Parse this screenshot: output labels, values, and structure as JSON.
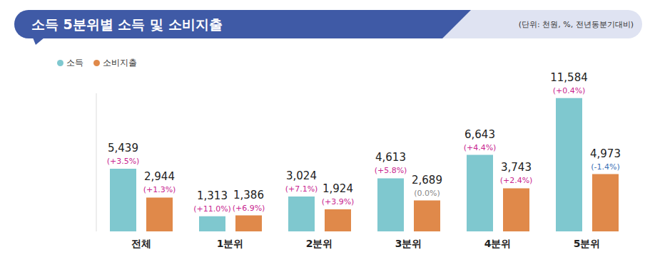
{
  "chart_data": {
    "type": "bar",
    "title": "소득 5분위별 소득 및 소비지출",
    "subtitle": "(단위: 천원, %, 전년동분기대비)",
    "categories": [
      "전체",
      "1분위",
      "2분위",
      "3분위",
      "4분위",
      "5분위"
    ],
    "series": [
      {
        "name": "소득",
        "color": "#7fc8cf",
        "values": [
          5439,
          1313,
          3024,
          4613,
          6643,
          11584
        ],
        "value_labels": [
          "5,439",
          "1,313",
          "3,024",
          "4,613",
          "6,643",
          "11,584"
        ],
        "change_labels": [
          "(+3.5%)",
          "(+11.0%)",
          "(+7.1%)",
          "(+5.8%)",
          "(+4.4%)",
          "(+0.4%)"
        ]
      },
      {
        "name": "소비지출",
        "color": "#e0894a",
        "values": [
          2944,
          1386,
          1924,
          2689,
          3743,
          4973
        ],
        "value_labels": [
          "2,944",
          "1,386",
          "1,924",
          "2,689",
          "3,743",
          "4,973"
        ],
        "change_labels": [
          "(+1.3%)",
          "(+6.9%)",
          "(+3.9%)",
          "(0.0%)",
          "(+2.4%)",
          "(-1.4%)"
        ]
      }
    ],
    "ylim": [
      0,
      12000
    ],
    "legend": "top-left",
    "data_labels": true,
    "tick_labels": "x",
    "grid": false
  }
}
